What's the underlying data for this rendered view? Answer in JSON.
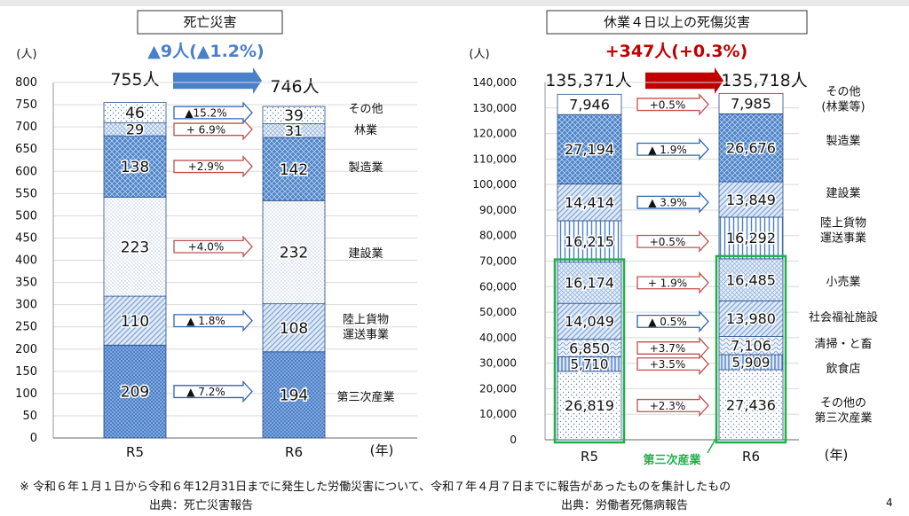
{
  "page_number": "4",
  "footnote": "※ 令和６年１月１日から令和６年12月31日までに発生した労働災害について、令和７年４月７日までに報告があったものを集計したもの",
  "chart_data": [
    {
      "type": "bar",
      "stacked": true,
      "title": "死亡災害",
      "change_text": "▲9人(▲1.2%)",
      "source": "出典：死亡災害報告",
      "ylabel": "(人)",
      "xlabel": "(年)",
      "ylim": [
        0,
        800
      ],
      "yticks": [
        "0",
        "50",
        "100",
        "150",
        "200",
        "250",
        "300",
        "350",
        "400",
        "450",
        "500",
        "550",
        "600",
        "650",
        "700",
        "750",
        "800"
      ],
      "categories": [
        "R5",
        "R6"
      ],
      "totals": [
        "755人",
        "746人"
      ],
      "series": [
        {
          "name": "第三次産業",
          "values": [
            209,
            194
          ],
          "labels": [
            "209",
            "194"
          ],
          "change": "▲ 7.2%",
          "direction": "down",
          "pattern": "dots-blue"
        },
        {
          "name": "陸上貨物\n運送事業",
          "values": [
            110,
            108
          ],
          "labels": [
            "110",
            "108"
          ],
          "change": "▲ 1.8%",
          "direction": "down",
          "pattern": "diag-light"
        },
        {
          "name": "建設業",
          "values": [
            223,
            232
          ],
          "labels": [
            "223",
            "232"
          ],
          "change": "+4.0%",
          "direction": "up",
          "pattern": "tiny-dots"
        },
        {
          "name": "製造業",
          "values": [
            138,
            142
          ],
          "labels": [
            "138",
            "142"
          ],
          "change": "+2.9%",
          "direction": "up",
          "pattern": "diamond"
        },
        {
          "name": "林業",
          "values": [
            29,
            31
          ],
          "labels": [
            "29",
            "31"
          ],
          "change": "+ 6.9%",
          "direction": "up",
          "pattern": "hatch-light"
        },
        {
          "name": "その他",
          "values": [
            46,
            39
          ],
          "labels": [
            "46",
            "39"
          ],
          "change": "▲15.2%",
          "direction": "down",
          "pattern": "sparse-dots"
        }
      ]
    },
    {
      "type": "bar",
      "stacked": true,
      "title": "休業４日以上の死傷災害",
      "change_text": "+347人(+0.3%)",
      "source": "出典：労働者死傷病報告",
      "ylabel": "(人)",
      "xlabel": "(年)",
      "ylim": [
        0,
        140000
      ],
      "yticks": [
        "0",
        "10,000",
        "20,000",
        "30,000",
        "40,000",
        "50,000",
        "60,000",
        "70,000",
        "80,000",
        "90,000",
        "100,000",
        "110,000",
        "120,000",
        "130,000",
        "140,000"
      ],
      "categories": [
        "R5",
        "R6"
      ],
      "totals": [
        "135,371人",
        "135,718人"
      ],
      "group_label": "第三次産業",
      "group_series_count": 5,
      "series": [
        {
          "name": "その他の\n第三次産業",
          "values": [
            26819,
            27436
          ],
          "labels": [
            "26,819",
            "27,436"
          ],
          "change": "+2.3%",
          "direction": "up",
          "pattern": "sparse-dots"
        },
        {
          "name": "飲食店",
          "values": [
            5710,
            5909
          ],
          "labels": [
            "5,710",
            "5,909"
          ],
          "change": "+3.5%",
          "direction": "up",
          "pattern": "vlines"
        },
        {
          "name": "清掃・と畜",
          "values": [
            6850,
            7106
          ],
          "labels": [
            "6,850",
            "7,106"
          ],
          "change": "+3.7%",
          "direction": "up",
          "pattern": "wave"
        },
        {
          "name": "社会福祉施設",
          "values": [
            14049,
            13980
          ],
          "labels": [
            "14,049",
            "13,980"
          ],
          "change": "▲ 0.5%",
          "direction": "down",
          "pattern": "diag-light"
        },
        {
          "name": "小売業",
          "values": [
            16174,
            16485
          ],
          "labels": [
            "16,174",
            "16,485"
          ],
          "change": "+ 1.9%",
          "direction": "up",
          "pattern": "hatch-light"
        },
        {
          "name": "陸上貨物\n運送事業",
          "values": [
            16215,
            16292
          ],
          "labels": [
            "16,215",
            "16,292"
          ],
          "change": "+0.5%",
          "direction": "up",
          "pattern": "vlines-blue"
        },
        {
          "name": "建設業",
          "values": [
            14414,
            13849
          ],
          "labels": [
            "14,414",
            "13,849"
          ],
          "change": "▲ 3.9%",
          "direction": "down",
          "pattern": "diag-light"
        },
        {
          "name": "製造業",
          "values": [
            27194,
            26676
          ],
          "labels": [
            "27,194",
            "26,676"
          ],
          "change": "▲ 1.9%",
          "direction": "down",
          "pattern": "diamond"
        },
        {
          "name": "その他\n(林業等)",
          "values": [
            7946,
            7985
          ],
          "labels": [
            "7,946",
            "7,985"
          ],
          "change": "+0.5%",
          "direction": "up",
          "pattern": "white"
        }
      ]
    }
  ]
}
